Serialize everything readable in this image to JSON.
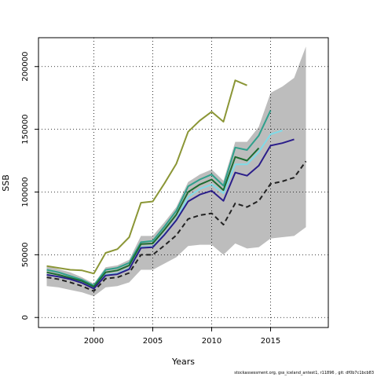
{
  "chart_data": {
    "type": "line",
    "title": "",
    "xlabel": "Years",
    "ylabel": "SSB",
    "xlim": [
      1995.3,
      2019.9
    ],
    "ylim": [
      -8000,
      223000
    ],
    "x_ticks": [
      2000,
      2005,
      2010,
      2015
    ],
    "y_ticks": [
      0,
      50000,
      100000,
      150000,
      200000
    ],
    "grid": true,
    "legend": "none",
    "band": {
      "color": "#bdbdbd",
      "x": [
        1996,
        1997,
        1998,
        1999,
        2000,
        2001,
        2002,
        2003,
        2004,
        2005,
        2006,
        2007,
        2008,
        2009,
        2010,
        2011,
        2012,
        2013,
        2014,
        2015,
        2016,
        2017,
        2018
      ],
      "upper": [
        41000,
        38500,
        36000,
        32000,
        27000,
        40000,
        41500,
        46000,
        65000,
        65000,
        76000,
        88000,
        108000,
        114000,
        118000,
        109000,
        140000,
        140000,
        152000,
        179000,
        184000,
        191000,
        216000
      ],
      "lower": [
        25000,
        24000,
        22000,
        20000,
        17000,
        24000,
        25000,
        28000,
        38000,
        38000,
        43000,
        48000,
        57000,
        58000,
        58000,
        50000,
        59000,
        55000,
        56000,
        63000,
        64000,
        65000,
        72000
      ]
    },
    "series": [
      {
        "color": "#8b9636",
        "style": "solid",
        "x": [
          1996,
          1997,
          1998,
          1999,
          2000,
          2001,
          2002,
          2003,
          2004,
          2005,
          2006,
          2007,
          2008,
          2009,
          2010,
          2011,
          2012,
          2013
        ],
        "values": [
          41000,
          39500,
          38000,
          37500,
          35000,
          51500,
          54500,
          64000,
          91500,
          92500,
          107000,
          122500,
          148000,
          157000,
          164000,
          156000,
          189000,
          185000
        ]
      },
      {
        "color": "#7fdbe8",
        "style": "solid",
        "x": [
          1996,
          1997,
          1998,
          1999,
          2000,
          2001,
          2002,
          2003,
          2004,
          2005,
          2006,
          2007,
          2008,
          2009,
          2010,
          2011,
          2012,
          2013,
          2014,
          2015,
          2016
        ],
        "values": [
          34000,
          32500,
          30500,
          28000,
          23500,
          34000,
          35000,
          39000,
          56000,
          56500,
          66500,
          78000,
          96000,
          102500,
          106000,
          99000,
          122000,
          122000,
          132000,
          146000,
          149000
        ]
      },
      {
        "color": "#2fa08c",
        "style": "solid",
        "x": [
          1996,
          1997,
          1998,
          1999,
          2000,
          2001,
          2002,
          2003,
          2004,
          2005,
          2006,
          2007,
          2008,
          2009,
          2010,
          2011,
          2012,
          2013,
          2014,
          2015
        ],
        "values": [
          38000,
          36000,
          33000,
          30000,
          25500,
          38000,
          39500,
          43500,
          60000,
          61000,
          72500,
          85000,
          104500,
          110000,
          114000,
          105000,
          135500,
          133500,
          145000,
          165000
        ]
      },
      {
        "color": "#1d6b30",
        "style": "solid",
        "x": [
          1996,
          1997,
          1998,
          1999,
          2000,
          2001,
          2002,
          2003,
          2004,
          2005,
          2006,
          2007,
          2008,
          2009,
          2010,
          2011,
          2012,
          2013,
          2014
        ],
        "values": [
          36000,
          34000,
          31500,
          29000,
          24500,
          36000,
          37500,
          41500,
          58500,
          59000,
          70000,
          82000,
          100000,
          106000,
          110000,
          101500,
          128000,
          125000,
          135000
        ]
      },
      {
        "color": "#2b1e8a",
        "style": "solid",
        "x": [
          1996,
          1997,
          1998,
          1999,
          2000,
          2001,
          2002,
          2003,
          2004,
          2005,
          2006,
          2007,
          2008,
          2009,
          2010,
          2011,
          2012,
          2013,
          2014,
          2015,
          2016,
          2017
        ],
        "values": [
          34000,
          32500,
          30500,
          27500,
          23000,
          33500,
          34500,
          38500,
          55500,
          56000,
          66000,
          77500,
          92500,
          98000,
          101000,
          93000,
          115500,
          113000,
          121000,
          137000,
          139000,
          142000
        ]
      },
      {
        "color": "#222222",
        "style": "dashed",
        "x": [
          1996,
          1997,
          1998,
          1999,
          2000,
          2001,
          2002,
          2003,
          2004,
          2005,
          2006,
          2007,
          2008,
          2009,
          2010,
          2011,
          2012,
          2013,
          2014,
          2015,
          2016,
          2017,
          2018
        ],
        "values": [
          32000,
          30500,
          28000,
          25000,
          21000,
          31000,
          32000,
          35500,
          50000,
          50000,
          57500,
          65500,
          78500,
          81500,
          83000,
          74000,
          91000,
          88000,
          93000,
          106500,
          108500,
          111500,
          124500
        ]
      }
    ]
  },
  "footer": "stockassessment.org, gss_iceland_antest1, r11896 , git: df0b7c1bcb83"
}
